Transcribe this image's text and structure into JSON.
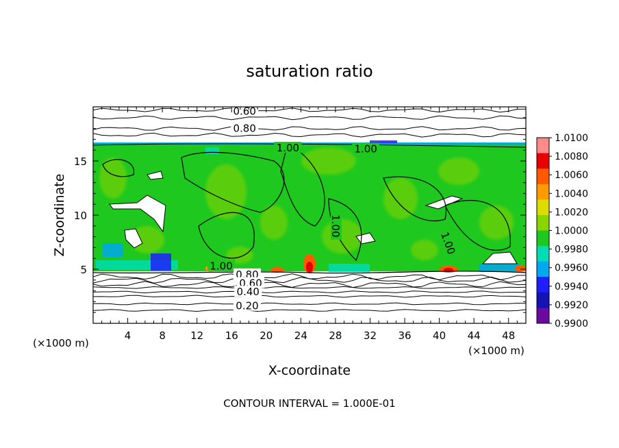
{
  "chart_data": {
    "type": "heatmap",
    "title": "saturation ratio",
    "xlabel": "X-coordinate",
    "ylabel": "Z-coordinate",
    "x_unit_left": "(×1000 m)",
    "x_unit_right": "(×1000 m)",
    "footer": "CONTOUR INTERVAL = 1.000E-01",
    "xlim": [
      0,
      50
    ],
    "ylim": [
      0,
      20
    ],
    "x_ticks": [
      4,
      8,
      12,
      16,
      20,
      24,
      28,
      32,
      36,
      40,
      44,
      48
    ],
    "y_ticks": [
      5,
      10,
      15
    ],
    "colorbar": {
      "levels": [
        "1.0100",
        "1.0080",
        "1.0060",
        "1.0040",
        "1.0020",
        "1.0000",
        "0.9980",
        "0.9960",
        "0.9940",
        "0.9920",
        "0.9900"
      ],
      "colors": [
        "#ff8a8a",
        "#e60000",
        "#ff5a00",
        "#ff9a00",
        "#dcdc00",
        "#8cd400",
        "#1ec81e",
        "#00dcb4",
        "#00a8f0",
        "#1e1eff",
        "#1414b4",
        "#6a0aa0"
      ]
    },
    "field": {
      "dominant_value": 1.0,
      "saturated_layer_z": [
        4.8,
        16.7
      ]
    },
    "contour_labels": [
      {
        "text": "0.60",
        "x": 17.5,
        "z": 19.6
      },
      {
        "text": "0.80",
        "x": 17.5,
        "z": 18.0
      },
      {
        "text": "1.00",
        "x": 22.5,
        "z": 16.2
      },
      {
        "text": "1.00",
        "x": 31.5,
        "z": 16.1
      },
      {
        "text": "1.00",
        "x": 28.0,
        "z": 9.0,
        "rotate": 90
      },
      {
        "text": "1.00",
        "x": 41.0,
        "z": 7.4,
        "rotate": 70
      },
      {
        "text": "1.00",
        "x": 14.8,
        "z": 5.3
      },
      {
        "text": "0.80",
        "x": 17.8,
        "z": 4.5
      },
      {
        "text": "0.60",
        "x": 18.2,
        "z": 3.7
      },
      {
        "text": "0.40",
        "x": 17.9,
        "z": 2.9
      },
      {
        "text": "0.20",
        "x": 17.8,
        "z": 1.6
      }
    ],
    "upper_contours_z": [
      19.7,
      19.0,
      18.0,
      17.4
    ],
    "lower_contours_z": [
      4.3,
      4.0,
      3.6,
      3.3,
      2.9,
      2.5,
      1.8,
      1.2
    ]
  }
}
